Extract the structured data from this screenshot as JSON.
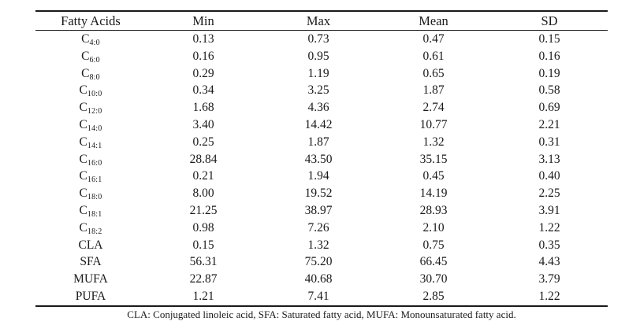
{
  "page": {
    "background_color": "#ffffff",
    "text_color": "#1a1a1a",
    "rule_color": "#1a1a1a"
  },
  "table": {
    "columns": [
      "Fatty Acids",
      "Min",
      "Max",
      "Mean",
      "SD"
    ],
    "rows": [
      {
        "label": "C",
        "sub": "4:0",
        "min": "0.13",
        "max": "0.73",
        "mean": "0.47",
        "sd": "0.15"
      },
      {
        "label": "C",
        "sub": "6:0",
        "min": "0.16",
        "max": "0.95",
        "mean": "0.61",
        "sd": "0.16"
      },
      {
        "label": "C",
        "sub": "8:0",
        "min": "0.29",
        "max": "1.19",
        "mean": "0.65",
        "sd": "0.19"
      },
      {
        "label": "C",
        "sub": "10:0",
        "min": "0.34",
        "max": "3.25",
        "mean": "1.87",
        "sd": "0.58"
      },
      {
        "label": "C",
        "sub": "12:0",
        "min": "1.68",
        "max": "4.36",
        "mean": "2.74",
        "sd": "0.69"
      },
      {
        "label": "C",
        "sub": "14:0",
        "min": "3.40",
        "max": "14.42",
        "mean": "10.77",
        "sd": "2.21"
      },
      {
        "label": "C",
        "sub": "14:1",
        "min": "0.25",
        "max": "1.87",
        "mean": "1.32",
        "sd": "0.31"
      },
      {
        "label": "C",
        "sub": "16:0",
        "min": "28.84",
        "max": "43.50",
        "mean": "35.15",
        "sd": "3.13"
      },
      {
        "label": "C",
        "sub": "16:1",
        "min": "0.21",
        "max": "1.94",
        "mean": "0.45",
        "sd": "0.40"
      },
      {
        "label": "C",
        "sub": "18:0",
        "min": "8.00",
        "max": "19.52",
        "mean": "14.19",
        "sd": "2.25"
      },
      {
        "label": "C",
        "sub": "18:1",
        "min": "21.25",
        "max": "38.97",
        "mean": "28.93",
        "sd": "3.91"
      },
      {
        "label": "C",
        "sub": "18:2",
        "min": "0.98",
        "max": "7.26",
        "mean": "2.10",
        "sd": "1.22"
      },
      {
        "label": "CLA",
        "sub": "",
        "min": "0.15",
        "max": "1.32",
        "mean": "0.75",
        "sd": "0.35"
      },
      {
        "label": "SFA",
        "sub": "",
        "min": "56.31",
        "max": "75.20",
        "mean": "66.45",
        "sd": "4.43"
      },
      {
        "label": "MUFA",
        "sub": "",
        "min": "22.87",
        "max": "40.68",
        "mean": "30.70",
        "sd": "3.79"
      },
      {
        "label": "PUFA",
        "sub": "",
        "min": "1.21",
        "max": "7.41",
        "mean": "2.85",
        "sd": "1.22"
      }
    ]
  },
  "footnote": "CLA: Conjugated linoleic acid, SFA: Saturated fatty acid, MUFA: Monounsaturated fatty acid."
}
